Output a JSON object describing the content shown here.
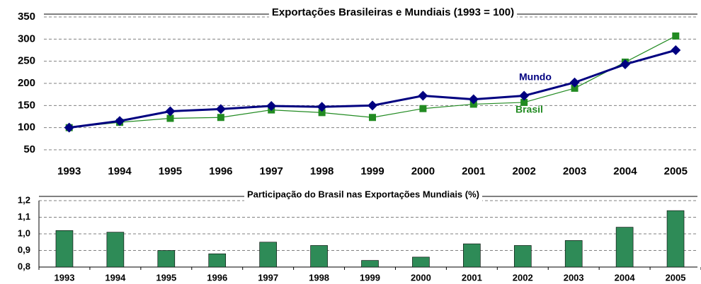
{
  "chart_data": [
    {
      "type": "line",
      "title": "Exportações Brasileiras e Mundiais (1993 = 100)",
      "categories": [
        "1993",
        "1994",
        "1995",
        "1996",
        "1997",
        "1998",
        "1999",
        "2000",
        "2001",
        "2002",
        "2003",
        "2004",
        "2005"
      ],
      "series": [
        {
          "name": "Mundo",
          "color": "#000080",
          "values": [
            100,
            115,
            137,
            142,
            149,
            147,
            150,
            172,
            164,
            172,
            202,
            243,
            275
          ]
        },
        {
          "name": "Brasil",
          "color": "#228b22",
          "values": [
            100,
            112,
            121,
            123,
            140,
            134,
            123,
            143,
            153,
            157,
            189,
            248,
            307
          ]
        }
      ],
      "ylim": [
        50,
        350
      ],
      "yticks": [
        50,
        100,
        150,
        200,
        250,
        300,
        350
      ],
      "grid": true
    },
    {
      "type": "bar",
      "title": "Participação do Brasil nas Exportações Mundiais (%)",
      "categories": [
        "1993",
        "1994",
        "1995",
        "1996",
        "1997",
        "1998",
        "1999",
        "2000",
        "2001",
        "2002",
        "2003",
        "2004",
        "2005"
      ],
      "values": [
        1.02,
        1.01,
        0.9,
        0.88,
        0.95,
        0.93,
        0.84,
        0.86,
        0.94,
        0.93,
        0.96,
        1.04,
        1.14
      ],
      "color": "#2e8b57",
      "ylim": [
        0.8,
        1.2
      ],
      "yticks": [
        {
          "value": 0.8,
          "label": "0,8"
        },
        {
          "value": 0.9,
          "label": "0,9"
        },
        {
          "value": 1.0,
          "label": "1,0"
        },
        {
          "value": 1.1,
          "label": "1,1"
        },
        {
          "value": 1.2,
          "label": "1,2"
        }
      ],
      "grid": true
    }
  ]
}
